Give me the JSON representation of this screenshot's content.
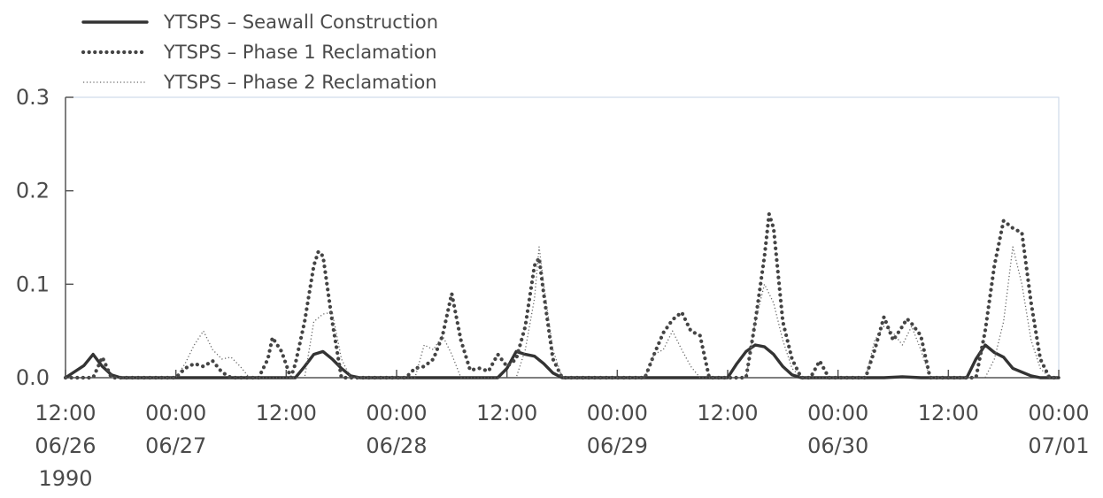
{
  "chart_data": {
    "type": "line",
    "title": "",
    "xlabel": "",
    "ylabel": "",
    "ylim": [
      0,
      0.3
    ],
    "xlim": [
      "1990-06-26 12:00",
      "1990-07-01 00:00"
    ],
    "grid": false,
    "legend_position": "top-left",
    "y_ticks": [
      "0.0",
      "0.1",
      "0.2",
      "0.3"
    ],
    "x_ticks": [
      {
        "time": "1990-06-26 12:00",
        "lines": [
          "12:00",
          "06/26",
          "1990"
        ]
      },
      {
        "time": "1990-06-27 00:00",
        "lines": [
          "00:00",
          "06/27"
        ]
      },
      {
        "time": "1990-06-27 12:00",
        "lines": [
          "12:00"
        ]
      },
      {
        "time": "1990-06-28 00:00",
        "lines": [
          "00:00",
          "06/28"
        ]
      },
      {
        "time": "1990-06-28 12:00",
        "lines": [
          "12:00"
        ]
      },
      {
        "time": "1990-06-29 00:00",
        "lines": [
          "00:00",
          "06/29"
        ]
      },
      {
        "time": "1990-06-29 12:00",
        "lines": [
          "12:00"
        ]
      },
      {
        "time": "1990-06-30 00:00",
        "lines": [
          "00:00",
          "06/30"
        ]
      },
      {
        "time": "1990-06-30 12:00",
        "lines": [
          "12:00"
        ]
      },
      {
        "time": "1990-07-01 00:00",
        "lines": [
          "00:00",
          "07/01"
        ]
      }
    ],
    "series": [
      {
        "name": "YTSPS – Seawall Construction",
        "style": "solid",
        "color": "#333333",
        "points": [
          [
            "1990-06-26 12:00",
            0
          ],
          [
            "1990-06-26 14:00",
            0.013
          ],
          [
            "1990-06-26 15:00",
            0.025
          ],
          [
            "1990-06-26 16:00",
            0.012
          ],
          [
            "1990-06-26 17:00",
            0.003
          ],
          [
            "1990-06-26 18:00",
            0
          ],
          [
            "1990-06-27 13:00",
            0
          ],
          [
            "1990-06-27 14:00",
            0.012
          ],
          [
            "1990-06-27 15:00",
            0.025
          ],
          [
            "1990-06-27 16:00",
            0.028
          ],
          [
            "1990-06-27 17:00",
            0.02
          ],
          [
            "1990-06-27 18:00",
            0.01
          ],
          [
            "1990-06-27 19:00",
            0.002
          ],
          [
            "1990-06-27 20:00",
            0
          ],
          [
            "1990-06-28 11:00",
            0
          ],
          [
            "1990-06-28 12:00",
            0.01
          ],
          [
            "1990-06-28 13:00",
            0.028
          ],
          [
            "1990-06-28 14:00",
            0.025
          ],
          [
            "1990-06-28 15:00",
            0.023
          ],
          [
            "1990-06-28 16:00",
            0.015
          ],
          [
            "1990-06-28 17:00",
            0.005
          ],
          [
            "1990-06-28 18:00",
            0
          ],
          [
            "1990-06-29 12:00",
            0
          ],
          [
            "1990-06-29 13:00",
            0.015
          ],
          [
            "1990-06-29 14:00",
            0.028
          ],
          [
            "1990-06-29 15:00",
            0.035
          ],
          [
            "1990-06-29 16:00",
            0.033
          ],
          [
            "1990-06-29 17:00",
            0.025
          ],
          [
            "1990-06-29 18:00",
            0.012
          ],
          [
            "1990-06-29 19:00",
            0.003
          ],
          [
            "1990-06-29 20:00",
            0
          ],
          [
            "1990-06-30 05:00",
            0
          ],
          [
            "1990-06-30 07:00",
            0.001
          ],
          [
            "1990-06-30 09:00",
            0
          ],
          [
            "1990-06-30 14:00",
            0
          ],
          [
            "1990-06-30 15:00",
            0.02
          ],
          [
            "1990-06-30 16:00",
            0.035
          ],
          [
            "1990-06-30 17:00",
            0.027
          ],
          [
            "1990-06-30 18:00",
            0.022
          ],
          [
            "1990-06-30 19:00",
            0.01
          ],
          [
            "1990-06-30 20:00",
            0.006
          ],
          [
            "1990-06-30 21:00",
            0.002
          ],
          [
            "1990-06-30 22:00",
            0
          ],
          [
            "1990-07-01 00:00",
            0
          ]
        ]
      },
      {
        "name": "YTSPS – Phase 1 Reclamation",
        "style": "heavy-dotted",
        "color": "#444444",
        "points": [
          [
            "1990-06-26 12:00",
            0
          ],
          [
            "1990-06-26 15:00",
            0
          ],
          [
            "1990-06-26 16:00",
            0.022
          ],
          [
            "1990-06-26 17:00",
            0
          ],
          [
            "1990-06-27 00:00",
            0
          ],
          [
            "1990-06-27 01:00",
            0.01
          ],
          [
            "1990-06-27 02:00",
            0.015
          ],
          [
            "1990-06-27 03:00",
            0.012
          ],
          [
            "1990-06-27 04:00",
            0.018
          ],
          [
            "1990-06-27 05:00",
            0.006
          ],
          [
            "1990-06-27 06:00",
            0
          ],
          [
            "1990-06-27 09:00",
            0
          ],
          [
            "1990-06-27 10:00",
            0.02
          ],
          [
            "1990-06-27 10:30",
            0.043
          ],
          [
            "1990-06-27 11:30",
            0.028
          ],
          [
            "1990-06-27 12:30",
            0
          ],
          [
            "1990-06-27 13:00",
            0.015
          ],
          [
            "1990-06-27 14:00",
            0.06
          ],
          [
            "1990-06-27 15:00",
            0.12
          ],
          [
            "1990-06-27 15:30",
            0.135
          ],
          [
            "1990-06-27 16:00",
            0.13
          ],
          [
            "1990-06-27 17:00",
            0.06
          ],
          [
            "1990-06-27 18:00",
            0
          ],
          [
            "1990-06-28 01:00",
            0
          ],
          [
            "1990-06-28 02:00",
            0.01
          ],
          [
            "1990-06-28 03:00",
            0.012
          ],
          [
            "1990-06-28 04:00",
            0.02
          ],
          [
            "1990-06-28 05:00",
            0.045
          ],
          [
            "1990-06-28 06:00",
            0.09
          ],
          [
            "1990-06-28 07:00",
            0.04
          ],
          [
            "1990-06-28 08:00",
            0.008
          ],
          [
            "1990-06-28 09:00",
            0.01
          ],
          [
            "1990-06-28 10:00",
            0.007
          ],
          [
            "1990-06-28 11:00",
            0.025
          ],
          [
            "1990-06-28 12:00",
            0.012
          ],
          [
            "1990-06-28 13:00",
            0.02
          ],
          [
            "1990-06-28 14:00",
            0.055
          ],
          [
            "1990-06-28 15:00",
            0.12
          ],
          [
            "1990-06-28 15:30",
            0.128
          ],
          [
            "1990-06-28 16:00",
            0.09
          ],
          [
            "1990-06-28 17:00",
            0.02
          ],
          [
            "1990-06-28 18:00",
            0
          ],
          [
            "1990-06-29 03:00",
            0
          ],
          [
            "1990-06-29 04:00",
            0.025
          ],
          [
            "1990-06-29 05:00",
            0.048
          ],
          [
            "1990-06-29 06:00",
            0.062
          ],
          [
            "1990-06-29 07:00",
            0.07
          ],
          [
            "1990-06-29 08:00",
            0.05
          ],
          [
            "1990-06-29 09:00",
            0.045
          ],
          [
            "1990-06-29 10:00",
            0
          ],
          [
            "1990-06-29 14:00",
            0
          ],
          [
            "1990-06-29 15:00",
            0.06
          ],
          [
            "1990-06-29 16:00",
            0.13
          ],
          [
            "1990-06-29 16:30",
            0.175
          ],
          [
            "1990-06-29 17:00",
            0.16
          ],
          [
            "1990-06-29 18:00",
            0.06
          ],
          [
            "1990-06-29 19:00",
            0.02
          ],
          [
            "1990-06-29 20:00",
            0
          ],
          [
            "1990-06-29 21:00",
            0
          ],
          [
            "1990-06-29 22:00",
            0.018
          ],
          [
            "1990-06-29 23:00",
            0
          ],
          [
            "1990-06-30 03:00",
            0
          ],
          [
            "1990-06-30 04:00",
            0.03
          ],
          [
            "1990-06-30 05:00",
            0.065
          ],
          [
            "1990-06-30 06:00",
            0.04
          ],
          [
            "1990-06-30 07:00",
            0.055
          ],
          [
            "1990-06-30 07:30",
            0.063
          ],
          [
            "1990-06-30 08:00",
            0.058
          ],
          [
            "1990-06-30 09:00",
            0.045
          ],
          [
            "1990-06-30 10:00",
            0
          ],
          [
            "1990-06-30 15:00",
            0
          ],
          [
            "1990-06-30 16:00",
            0.05
          ],
          [
            "1990-06-30 17:00",
            0.12
          ],
          [
            "1990-06-30 18:00",
            0.168
          ],
          [
            "1990-06-30 19:00",
            0.16
          ],
          [
            "1990-06-30 20:00",
            0.155
          ],
          [
            "1990-06-30 21:00",
            0.08
          ],
          [
            "1990-06-30 22:00",
            0.02
          ],
          [
            "1990-06-30 23:00",
            0
          ],
          [
            "1990-07-01 00:00",
            0
          ]
        ]
      },
      {
        "name": "YTSPS – Phase 2 Reclamation",
        "style": "fine-dotted",
        "color": "#666666",
        "points": [
          [
            "1990-06-26 12:00",
            0
          ],
          [
            "1990-06-27 00:00",
            0
          ],
          [
            "1990-06-27 01:00",
            0.015
          ],
          [
            "1990-06-27 02:00",
            0.035
          ],
          [
            "1990-06-27 03:00",
            0.05
          ],
          [
            "1990-06-27 04:00",
            0.03
          ],
          [
            "1990-06-27 05:00",
            0.02
          ],
          [
            "1990-06-27 06:00",
            0.022
          ],
          [
            "1990-06-27 07:00",
            0.012
          ],
          [
            "1990-06-27 08:00",
            0
          ],
          [
            "1990-06-27 14:00",
            0
          ],
          [
            "1990-06-27 15:00",
            0.06
          ],
          [
            "1990-06-27 16:00",
            0.068
          ],
          [
            "1990-06-27 17:00",
            0.07
          ],
          [
            "1990-06-27 18:00",
            0.02
          ],
          [
            "1990-06-27 19:00",
            0
          ],
          [
            "1990-06-28 02:00",
            0
          ],
          [
            "1990-06-28 03:00",
            0.035
          ],
          [
            "1990-06-28 04:00",
            0.03
          ],
          [
            "1990-06-28 05:00",
            0.045
          ],
          [
            "1990-06-28 06:00",
            0.025
          ],
          [
            "1990-06-28 07:00",
            0
          ],
          [
            "1990-06-28 13:00",
            0
          ],
          [
            "1990-06-28 14:00",
            0.03
          ],
          [
            "1990-06-28 15:00",
            0.085
          ],
          [
            "1990-06-28 15:30",
            0.14
          ],
          [
            "1990-06-28 16:00",
            0.1
          ],
          [
            "1990-06-28 17:00",
            0.03
          ],
          [
            "1990-06-28 18:00",
            0
          ],
          [
            "1990-06-29 03:00",
            0
          ],
          [
            "1990-06-29 04:00",
            0.025
          ],
          [
            "1990-06-29 05:00",
            0.03
          ],
          [
            "1990-06-29 06:00",
            0.05
          ],
          [
            "1990-06-29 07:00",
            0.03
          ],
          [
            "1990-06-29 08:00",
            0.012
          ],
          [
            "1990-06-29 09:00",
            0
          ],
          [
            "1990-06-29 14:00",
            0
          ],
          [
            "1990-06-29 15:00",
            0.06
          ],
          [
            "1990-06-29 16:00",
            0.1
          ],
          [
            "1990-06-29 17:00",
            0.08
          ],
          [
            "1990-06-29 18:00",
            0.04
          ],
          [
            "1990-06-29 19:00",
            0.01
          ],
          [
            "1990-06-29 20:00",
            0
          ],
          [
            "1990-06-30 03:00",
            0
          ],
          [
            "1990-06-30 04:00",
            0.04
          ],
          [
            "1990-06-30 05:00",
            0.055
          ],
          [
            "1990-06-30 06:00",
            0.048
          ],
          [
            "1990-06-30 07:00",
            0.035
          ],
          [
            "1990-06-30 08:00",
            0.055
          ],
          [
            "1990-06-30 09:00",
            0.03
          ],
          [
            "1990-06-30 10:00",
            0
          ],
          [
            "1990-06-30 16:00",
            0
          ],
          [
            "1990-06-30 17:00",
            0.02
          ],
          [
            "1990-06-30 18:00",
            0.06
          ],
          [
            "1990-06-30 19:00",
            0.14
          ],
          [
            "1990-06-30 20:00",
            0.1
          ],
          [
            "1990-06-30 21:00",
            0.04
          ],
          [
            "1990-06-30 22:00",
            0.01
          ],
          [
            "1990-06-30 23:00",
            0
          ],
          [
            "1990-07-01 00:00",
            0
          ]
        ]
      }
    ]
  }
}
